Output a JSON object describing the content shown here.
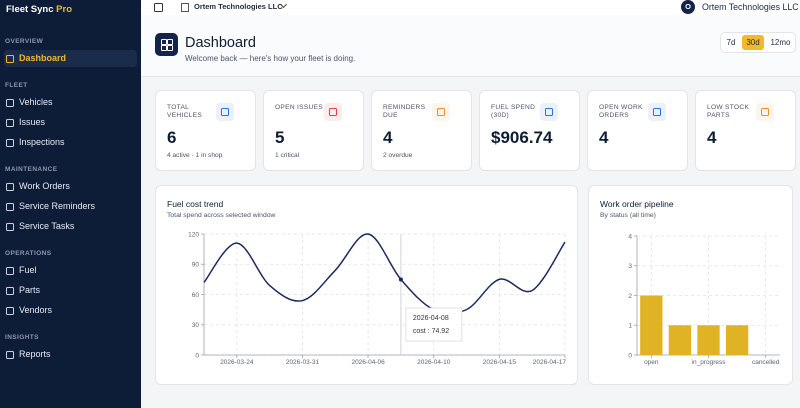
{
  "sidebar": {
    "brand": "Fleet Sync",
    "brand_accent": "Pro",
    "active": "Dashboard",
    "sections": [
      {
        "title": "OVERVIEW",
        "items": [
          "Dashboard"
        ]
      },
      {
        "title": "FLEET",
        "items": [
          "Vehicles",
          "Issues",
          "Inspections"
        ]
      },
      {
        "title": "MAINTENANCE",
        "items": [
          "Work Orders",
          "Service Reminders",
          "Service Tasks"
        ]
      },
      {
        "title": "OPERATIONS",
        "items": [
          "Fuel",
          "Parts",
          "Vendors"
        ]
      },
      {
        "title": "INSIGHTS",
        "items": [
          "Reports"
        ]
      }
    ]
  },
  "topbar": {
    "org": "Ortem Technologies LLC",
    "avatar": "O",
    "user": "Ortem Technologies LLC"
  },
  "header": {
    "title": "Dashboard",
    "subtitle": "Welcome back — here's how your fleet is doing.",
    "ranges": [
      "7d",
      "30d",
      "12mo"
    ],
    "active_range": "30d"
  },
  "kpis": [
    {
      "label": "TOTAL VEHICLES",
      "value": 6,
      "note": "4 active · 1 in shop",
      "color": "#2f6fde"
    },
    {
      "label": "OPEN ISSUES",
      "value": 5,
      "note": "1 critical",
      "color": "#e0413a"
    },
    {
      "label": "REMINDERS DUE",
      "value": 4,
      "note": "2 overdue",
      "color": "#e8912c"
    },
    {
      "label": "FUEL SPEND (30D)",
      "value": "$906.74",
      "color": "#2f6fde"
    },
    {
      "label": "OPEN WORK ORDERS",
      "value": 4,
      "color": "#2f6fde"
    },
    {
      "label": "LOW STOCK PARTS",
      "value": 4,
      "color": "#e8912c"
    }
  ],
  "chart_data": [
    {
      "type": "line",
      "title": "Fuel cost trend",
      "subtitle": "Total spend across selected window",
      "categories": [
        null,
        "2026-03-24",
        null,
        "2026-03-31",
        null,
        "2026-04-06",
        null,
        "2026-04-10",
        null,
        "2026-04-15",
        null,
        "2026-04-17"
      ],
      "series": [
        {
          "name": "cost",
          "color": "#1b2a5c",
          "values": [
            72,
            111,
            69,
            54,
            84,
            120,
            74.92,
            45,
            45,
            75,
            64,
            112
          ]
        }
      ],
      "ylim": [
        0,
        120
      ],
      "yticks": [
        0,
        30,
        60,
        90,
        120
      ],
      "grid": true,
      "tooltip": {
        "index": 6,
        "title": "2026-04-08",
        "text": "cost : 74.92"
      }
    },
    {
      "type": "bar",
      "title": "Work order pipeline",
      "subtitle": "By status (all time)",
      "categories": [
        "open",
        null,
        "in_progress",
        null,
        "cancelled"
      ],
      "values": [
        2,
        1,
        1,
        1,
        0
      ],
      "color": "#e0b325",
      "ylim": [
        0,
        4
      ],
      "yticks": [
        0,
        1,
        2,
        3,
        4
      ],
      "grid": true
    }
  ]
}
